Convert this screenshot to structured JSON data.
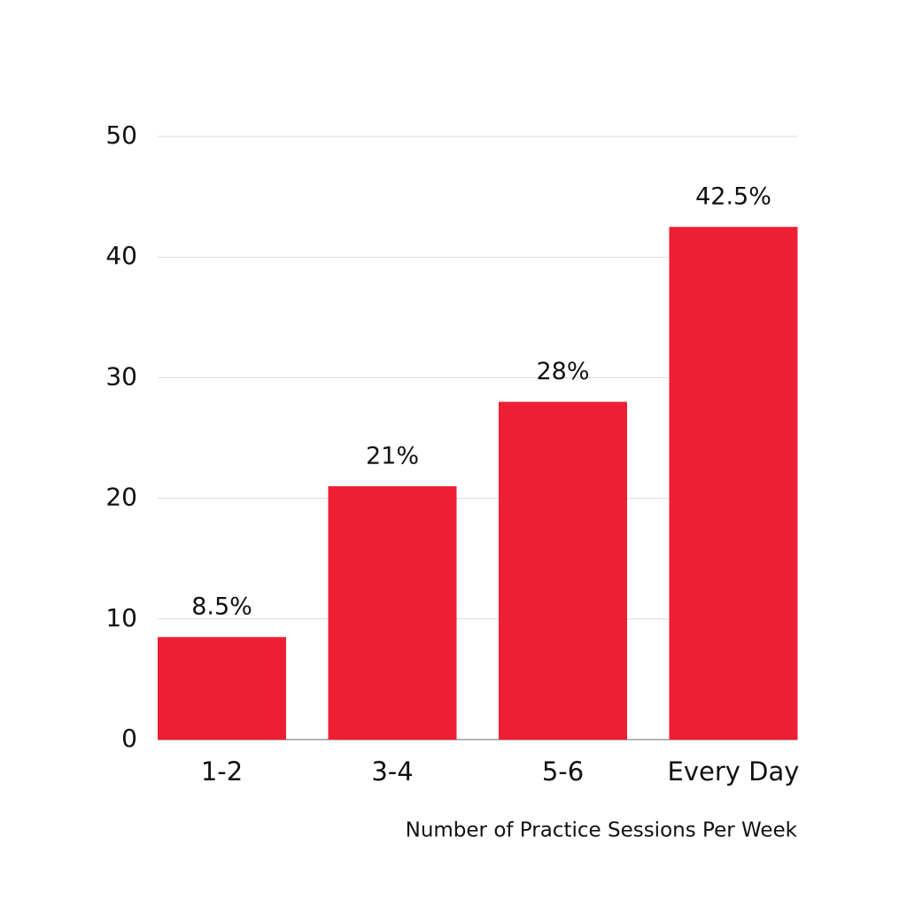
{
  "chart_data": {
    "type": "bar",
    "x_label": "Number of Practice Sessions Per Week",
    "categories": [
      "1-2",
      "3-4",
      "5-6",
      "Every Day"
    ],
    "values": [
      8.5,
      21,
      28,
      42.5
    ],
    "value_labels": [
      "8.5%",
      "21%",
      "28%",
      "42.5%"
    ],
    "color": "#ef1f33",
    "ylim": [
      0,
      50
    ],
    "yticks": [
      0,
      10,
      20,
      30,
      40,
      50
    ],
    "grid": true
  }
}
